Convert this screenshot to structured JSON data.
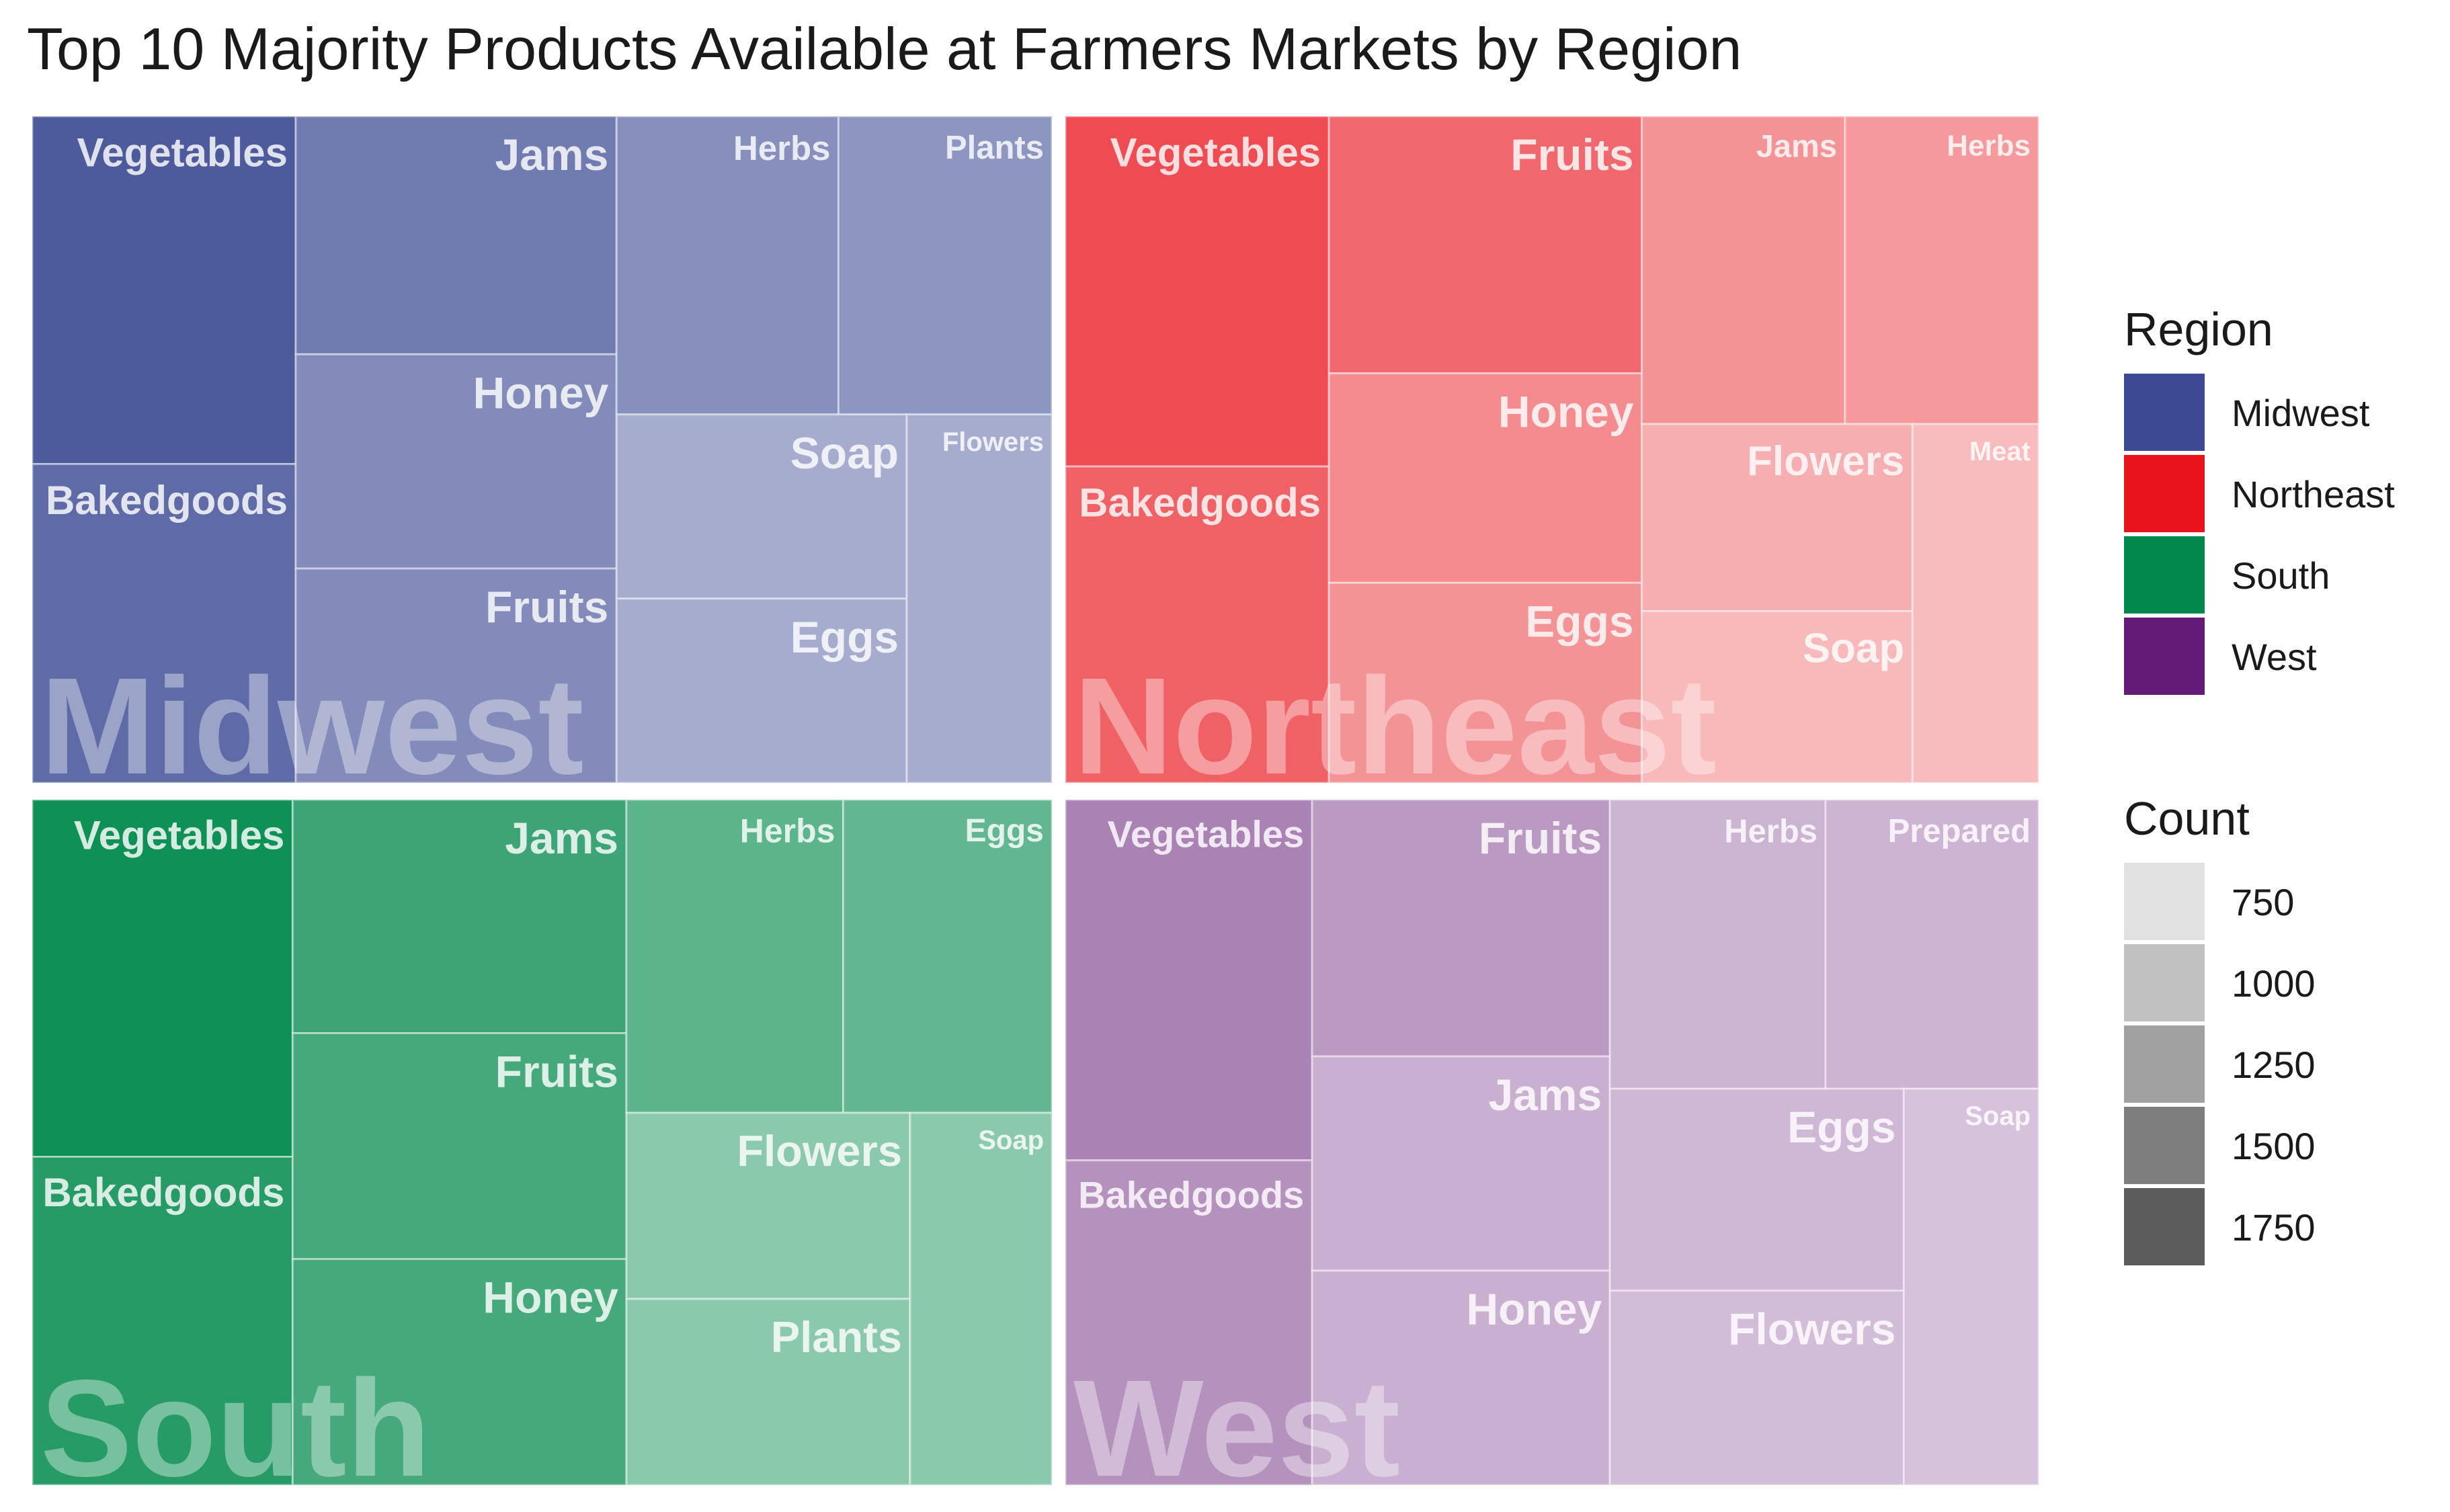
{
  "chart_data": {
    "type": "treemap",
    "title": "Top 10 Majority Products Available at Farmers Markets by Region",
    "legend": {
      "position": "right",
      "region_title": "Region",
      "count_title": "Count",
      "count_breaks": [
        750,
        1000,
        1250,
        1500,
        1750
      ],
      "count_colors": [
        "#e1e1e1",
        "#c1c1c1",
        "#a0a0a0",
        "#7e7e7e",
        "#5c5c5c"
      ]
    },
    "regions": [
      {
        "name": "Midwest",
        "color": "#3b4a92",
        "products": [
          {
            "name": "Vegetables",
            "count": 1800
          },
          {
            "name": "Bakedgoods",
            "count": 1650
          },
          {
            "name": "Jams",
            "count": 1500
          },
          {
            "name": "Honey",
            "count": 1350
          },
          {
            "name": "Fruits",
            "count": 1350
          },
          {
            "name": "Herbs",
            "count": 1300
          },
          {
            "name": "Plants",
            "count": 1250
          },
          {
            "name": "Soap",
            "count": 1050
          },
          {
            "name": "Eggs",
            "count": 1050
          },
          {
            "name": "Flowers",
            "count": 1050
          }
        ]
      },
      {
        "name": "Northeast",
        "color": "#e8131b",
        "products": [
          {
            "name": "Vegetables",
            "count": 1550
          },
          {
            "name": "Bakedgoods",
            "count": 1400
          },
          {
            "name": "Fruits",
            "count": 1350
          },
          {
            "name": "Honey",
            "count": 1100
          },
          {
            "name": "Eggs",
            "count": 1050
          },
          {
            "name": "Jams",
            "count": 1050
          },
          {
            "name": "Herbs",
            "count": 1000
          },
          {
            "name": "Flowers",
            "count": 850
          },
          {
            "name": "Soap",
            "count": 780
          },
          {
            "name": "Meat",
            "count": 760
          }
        ]
      },
      {
        "name": "South",
        "color": "#00894a",
        "products": [
          {
            "name": "Vegetables",
            "count": 1850
          },
          {
            "name": "Bakedgoods",
            "count": 1700
          },
          {
            "name": "Jams",
            "count": 1550
          },
          {
            "name": "Fruits",
            "count": 1500
          },
          {
            "name": "Honey",
            "count": 1500
          },
          {
            "name": "Herbs",
            "count": 1350
          },
          {
            "name": "Eggs",
            "count": 1300
          },
          {
            "name": "Flowers",
            "count": 1050
          },
          {
            "name": "Plants",
            "count": 1050
          },
          {
            "name": "Soap",
            "count": 1050
          }
        ]
      },
      {
        "name": "West",
        "color": "#641b77",
        "products": [
          {
            "name": "Vegetables",
            "count": 1200
          },
          {
            "name": "Bakedgoods",
            "count": 1080
          },
          {
            "name": "Fruits",
            "count": 1030
          },
          {
            "name": "Jams",
            "count": 860
          },
          {
            "name": "Honey",
            "count": 860
          },
          {
            "name": "Eggs",
            "count": 800
          },
          {
            "name": "Herbs",
            "count": 840
          },
          {
            "name": "Prepared",
            "count": 830
          },
          {
            "name": "Flowers",
            "count": 770
          },
          {
            "name": "Soap",
            "count": 720
          }
        ]
      }
    ]
  }
}
